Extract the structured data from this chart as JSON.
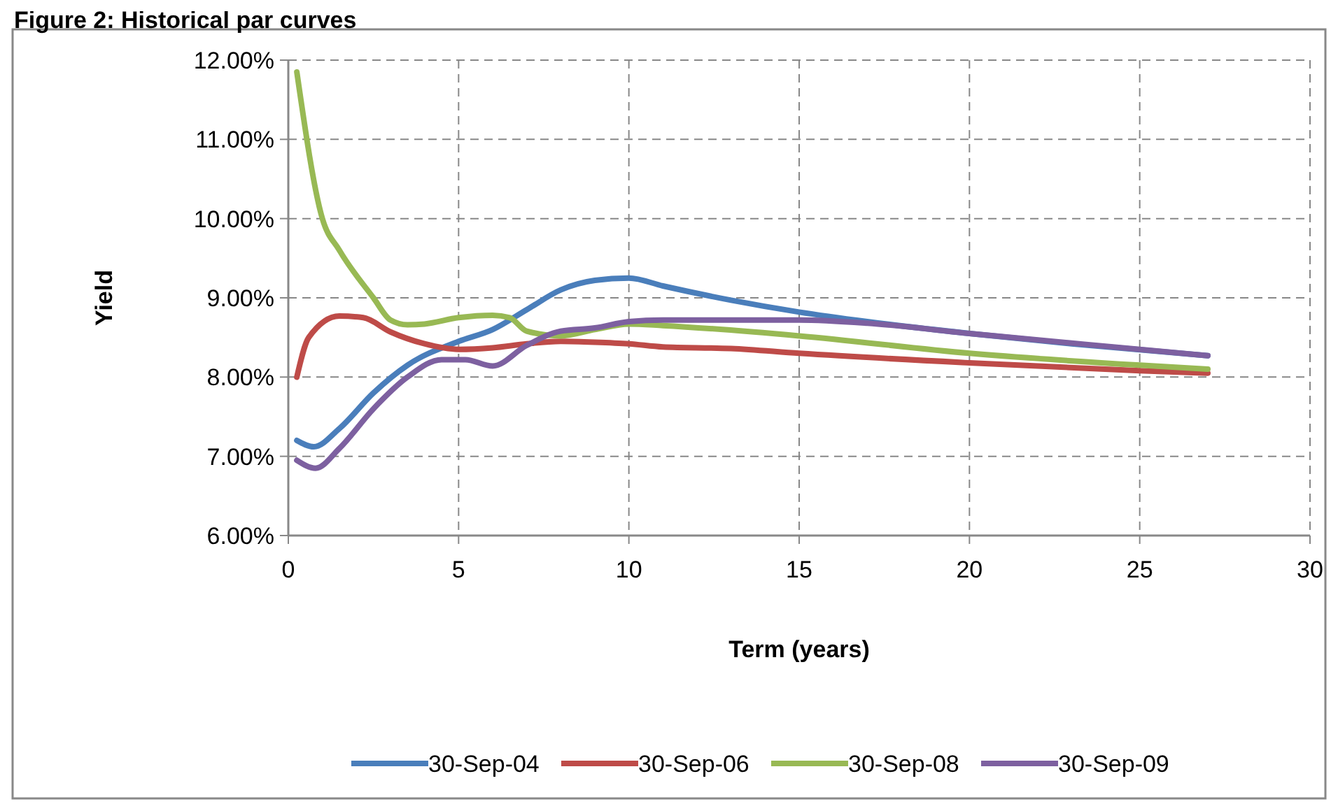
{
  "chart_data": {
    "type": "line",
    "title": "Figure 2: Historical par curves",
    "xlabel": "Term (years)",
    "ylabel": "Yield",
    "xlim": [
      0,
      30
    ],
    "xticks": [
      0,
      5,
      10,
      15,
      20,
      25,
      30
    ],
    "ylim": [
      6,
      12
    ],
    "yticks": [
      {
        "value": 6,
        "label": "6.00%"
      },
      {
        "value": 7,
        "label": "7.00%"
      },
      {
        "value": 8,
        "label": "8.00%"
      },
      {
        "value": 9,
        "label": "9.00%"
      },
      {
        "value": 10,
        "label": "10.00%"
      },
      {
        "value": 11,
        "label": "11.00%"
      },
      {
        "value": 12,
        "label": "12.00%"
      }
    ],
    "grid": true,
    "legend": "bottom",
    "marker": "none",
    "line_style": "solid",
    "series": [
      {
        "name": "30-Sep-04",
        "color": "#4a7ebb",
        "x": [
          0.25,
          0.75,
          1.5,
          2.5,
          3.5,
          5,
          6,
          7,
          8,
          9,
          10,
          11,
          13,
          15,
          17,
          20,
          23,
          27
        ],
        "values": [
          7.2,
          7.12,
          7.35,
          7.8,
          8.15,
          8.45,
          8.6,
          8.85,
          9.1,
          9.22,
          9.25,
          9.15,
          8.97,
          8.82,
          8.7,
          8.55,
          8.42,
          8.27
        ]
      },
      {
        "name": "30-Sep-06",
        "color": "#be4b48",
        "x": [
          0.25,
          0.6,
          1.5,
          2.2,
          3,
          4,
          5,
          6,
          7,
          8,
          9,
          10,
          11,
          13,
          15,
          20,
          25,
          27
        ],
        "values": [
          8.0,
          8.5,
          8.77,
          8.75,
          8.57,
          8.42,
          8.35,
          8.37,
          8.42,
          8.45,
          8.44,
          8.42,
          8.38,
          8.36,
          8.3,
          8.18,
          8.08,
          8.05
        ]
      },
      {
        "name": "30-Sep-08",
        "color": "#98b954",
        "x": [
          0.25,
          1,
          1.5,
          2.5,
          3,
          3.5,
          4,
          5,
          6,
          6.5,
          7,
          8,
          9,
          10,
          11,
          15,
          20,
          25,
          27
        ],
        "values": [
          11.85,
          10.0,
          9.6,
          9.0,
          8.72,
          8.66,
          8.67,
          8.75,
          8.78,
          8.75,
          8.58,
          8.52,
          8.6,
          8.67,
          8.65,
          8.52,
          8.3,
          8.15,
          8.1
        ]
      },
      {
        "name": "30-Sep-09",
        "color": "#7d60a0",
        "x": [
          0.25,
          0.8,
          1.5,
          2.5,
          3.5,
          4.5,
          5.2,
          6,
          7,
          8,
          9,
          10,
          11,
          13,
          15,
          17,
          20,
          25,
          27
        ],
        "values": [
          6.95,
          6.85,
          7.1,
          7.6,
          8.0,
          8.22,
          8.22,
          8.14,
          8.4,
          8.58,
          8.62,
          8.7,
          8.72,
          8.72,
          8.72,
          8.68,
          8.55,
          8.35,
          8.27
        ]
      }
    ]
  }
}
